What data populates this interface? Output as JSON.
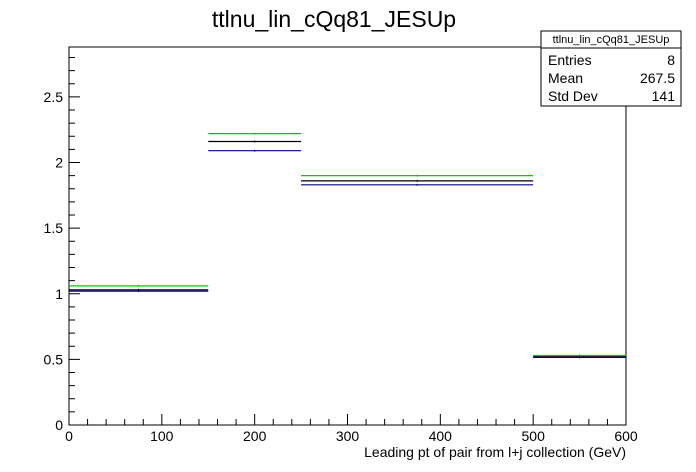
{
  "chart_data": {
    "type": "step-histogram",
    "title": "ttlnu_lin_cQq81_JESUp",
    "xlabel": "Leading pt of pair from l+j collection (GeV)",
    "ylabel": "",
    "xlim": [
      0,
      600
    ],
    "ylim": [
      0,
      2.88
    ],
    "x_ticks": [
      "0",
      "100",
      "200",
      "300",
      "400",
      "500",
      "600"
    ],
    "y_ticks": [
      "0",
      "0.5",
      "1",
      "1.5",
      "2",
      "2.5"
    ],
    "bins": [
      {
        "lo": 0,
        "hi": 150
      },
      {
        "lo": 150,
        "hi": 250
      },
      {
        "lo": 250,
        "hi": 500
      },
      {
        "lo": 500,
        "hi": 600
      }
    ],
    "series": [
      {
        "color": "#00cc00",
        "values": [
          1.06,
          2.22,
          1.9,
          0.53
        ]
      },
      {
        "color": "#000000",
        "values": [
          1.03,
          2.16,
          1.86,
          0.52
        ]
      },
      {
        "color": "#000080",
        "values": [
          1.02,
          2.09,
          1.83,
          0.515
        ]
      }
    ],
    "grid": false,
    "stats_box": {
      "title": "ttlnu_lin_cQq81_JESUp",
      "rows": [
        {
          "label": "Entries",
          "value": "8"
        },
        {
          "label": "Mean",
          "value": "267.5"
        },
        {
          "label": "Std Dev",
          "value": "141"
        }
      ]
    }
  }
}
